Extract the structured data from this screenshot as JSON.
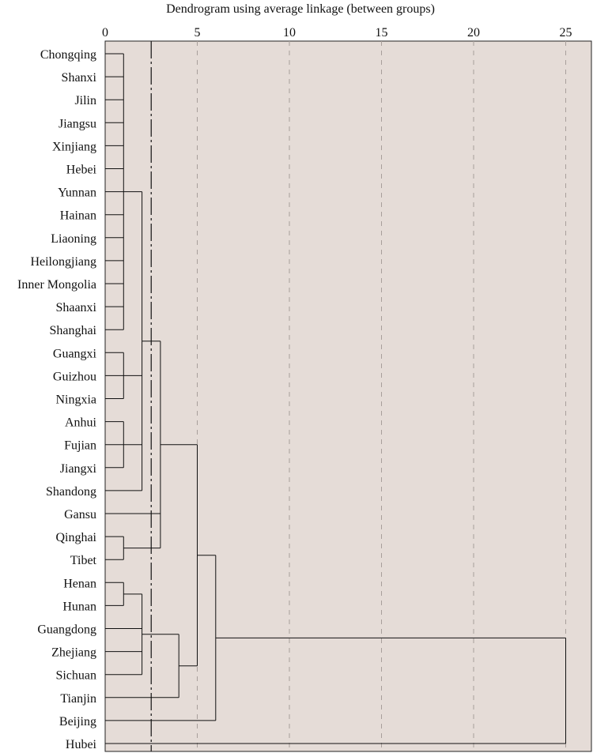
{
  "chart_data": {
    "type": "dendrogram",
    "title": "Dendrogram using average linkage (between groups)",
    "xlim": [
      0,
      26.5
    ],
    "x_ticks": [
      0,
      5,
      10,
      15,
      20,
      25
    ],
    "x_tick_labels": [
      "0",
      "5",
      "10",
      "15",
      "20",
      "25"
    ],
    "grid": "vertical-dashed",
    "cut_line": 2.5,
    "leaves": [
      "Chongqing",
      "Shanxi",
      "Jilin",
      "Jiangsu",
      "Xinjiang",
      "Hebei",
      "Yunnan",
      "Hainan",
      "Liaoning",
      "Heilongjiang",
      "Inner Mongolia",
      "Shaanxi",
      "Shanghai",
      "Guangxi",
      "Guizhou",
      "Ningxia",
      "Anhui",
      "Fujian",
      "Jiangxi",
      "Shandong",
      "Gansu",
      "Qinghai",
      "Tibet",
      "Henan",
      "Hunan",
      "Guangdong",
      "Zhejiang",
      "Sichuan",
      "Tianjin",
      "Beijing",
      "Hubei"
    ],
    "merges": [
      {
        "members": [
          "L0",
          "L1",
          "L2",
          "L3",
          "L4",
          "L5",
          "L6",
          "L7",
          "L8",
          "L9",
          "L10",
          "L11",
          "L12"
        ],
        "height": 1.0
      },
      {
        "members": [
          "L13",
          "L14",
          "L15"
        ],
        "height": 1.0
      },
      {
        "members": [
          "L16",
          "L17",
          "L18"
        ],
        "height": 1.0
      },
      {
        "members": [
          "L21",
          "L22"
        ],
        "height": 1.0
      },
      {
        "members": [
          "L23",
          "L24"
        ],
        "height": 1.0
      },
      {
        "members": [
          "C0",
          "C1",
          "C2",
          "L19"
        ],
        "height": 2.0
      },
      {
        "members": [
          "C4",
          "L25",
          "L26",
          "L27"
        ],
        "height": 2.0
      },
      {
        "members": [
          "C5",
          "L20",
          "C3"
        ],
        "height": 3.0
      },
      {
        "members": [
          "C6",
          "L28"
        ],
        "height": 4.0
      },
      {
        "members": [
          "C7",
          "C8"
        ],
        "height": 5.0
      },
      {
        "members": [
          "C9",
          "L29"
        ],
        "height": 6.0
      },
      {
        "members": [
          "C10",
          "L30"
        ],
        "height": 25.0
      }
    ]
  }
}
